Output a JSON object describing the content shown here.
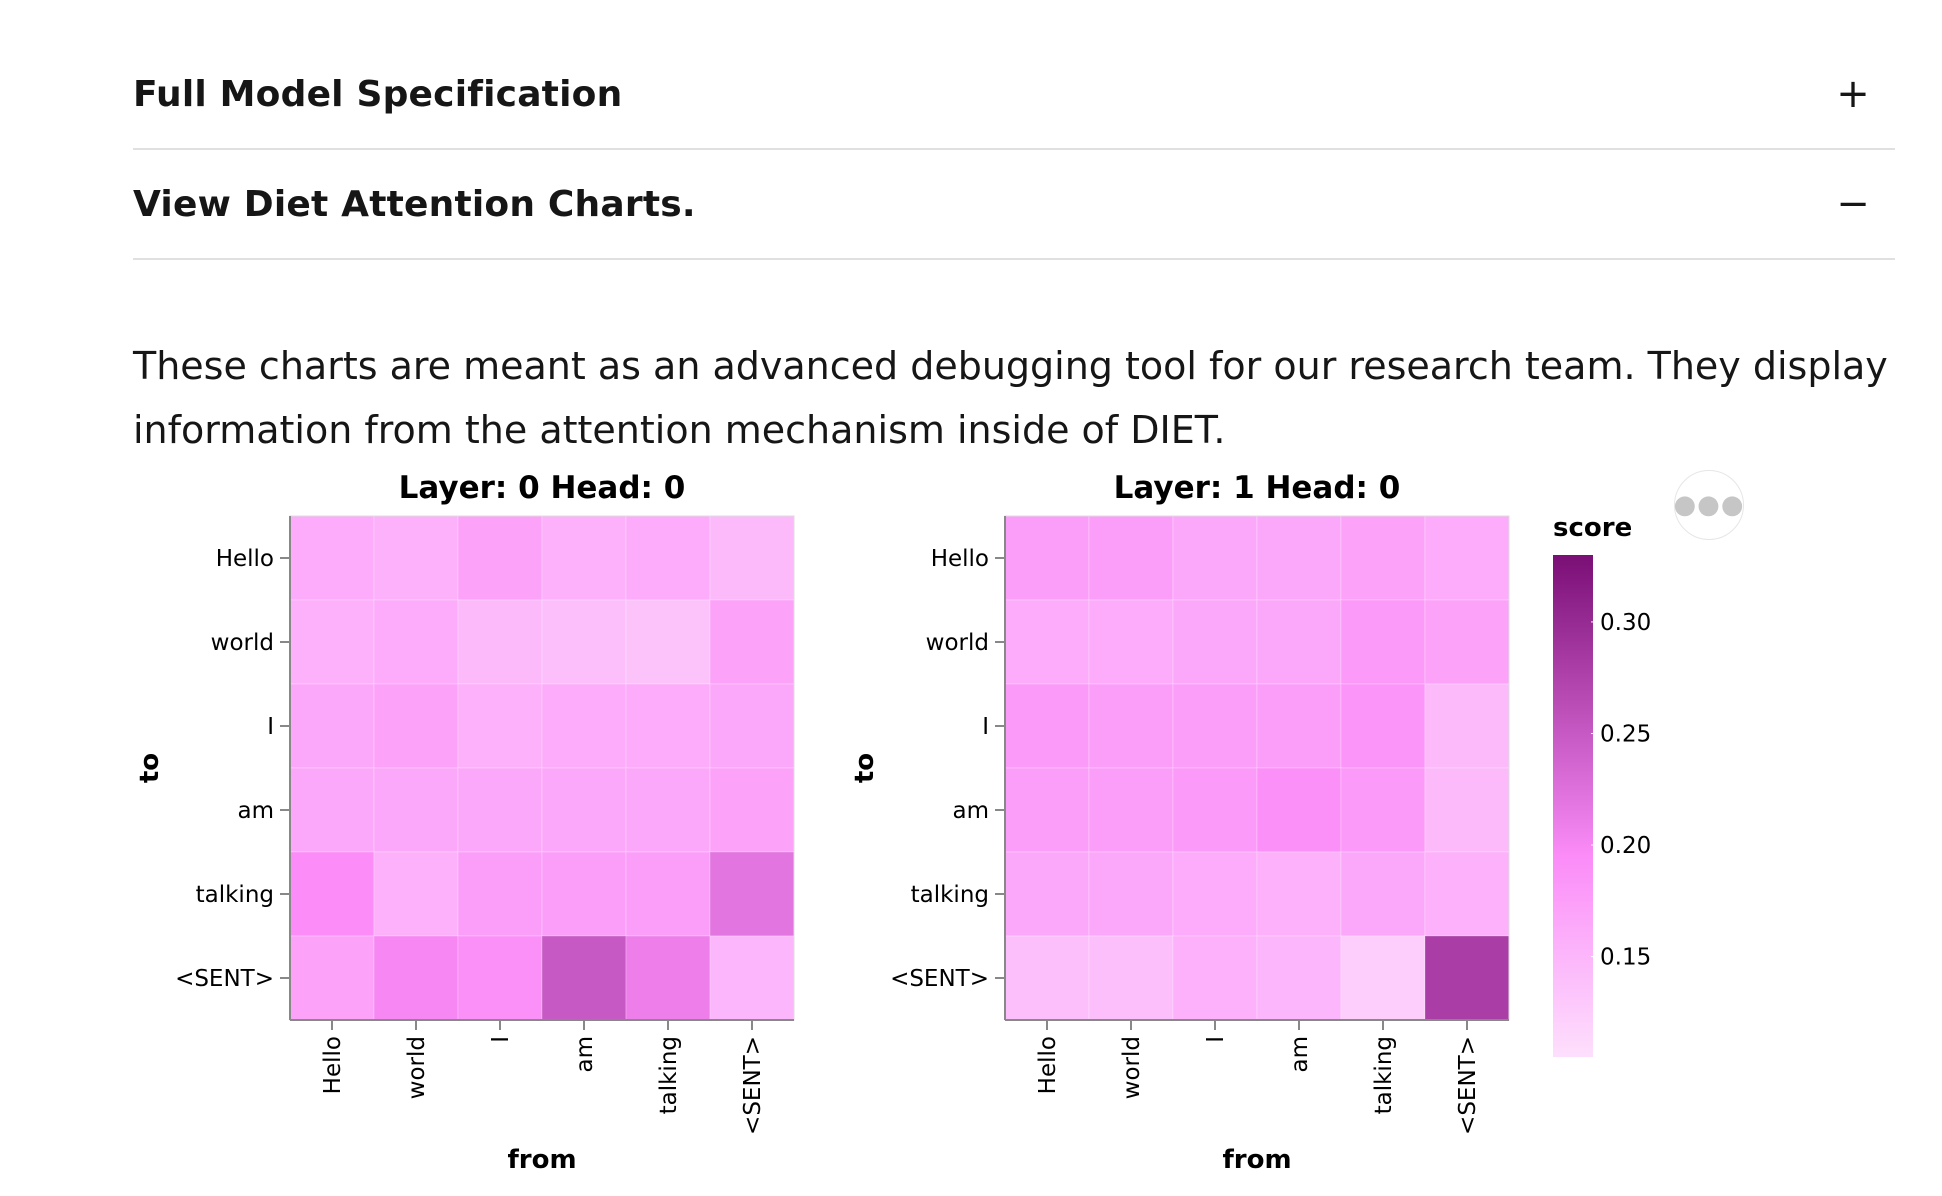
{
  "accordion": {
    "items": [
      {
        "title": "Full Model Specification",
        "icon": "+",
        "icon_name": "plus-icon",
        "expanded": false
      },
      {
        "title": "View Diet Attention Charts.",
        "icon": "−",
        "icon_name": "minus-icon",
        "expanded": true
      }
    ]
  },
  "description": "These charts are meant as an advanced debugging tool for our research team. They display information from the attention mechanism inside of DIET.",
  "actions_icon": "more-horizontal-icon",
  "chart_data": [
    {
      "type": "heatmap",
      "title": "Layer: 0 Head: 0",
      "xlabel": "from",
      "ylabel": "to",
      "x": [
        "Hello",
        "world",
        "I",
        "am",
        "talking",
        "<SENT>"
      ],
      "y": [
        "Hello",
        "world",
        "I",
        "am",
        "talking",
        "<SENT>"
      ],
      "values": [
        [
          0.16,
          0.155,
          0.17,
          0.155,
          0.16,
          0.145
        ],
        [
          0.155,
          0.16,
          0.145,
          0.14,
          0.135,
          0.17
        ],
        [
          0.165,
          0.17,
          0.155,
          0.16,
          0.16,
          0.165
        ],
        [
          0.165,
          0.165,
          0.165,
          0.165,
          0.165,
          0.17
        ],
        [
          0.195,
          0.155,
          0.175,
          0.175,
          0.175,
          0.22
        ],
        [
          0.17,
          0.2,
          0.19,
          0.25,
          0.21,
          0.15
        ]
      ]
    },
    {
      "type": "heatmap",
      "title": "Layer: 1 Head: 0",
      "xlabel": "from",
      "ylabel": "to",
      "x": [
        "Hello",
        "world",
        "I",
        "am",
        "talking",
        "<SENT>"
      ],
      "y": [
        "Hello",
        "world",
        "I",
        "am",
        "talking",
        "<SENT>"
      ],
      "values": [
        [
          0.175,
          0.175,
          0.165,
          0.165,
          0.17,
          0.16
        ],
        [
          0.16,
          0.16,
          0.165,
          0.165,
          0.18,
          0.17
        ],
        [
          0.18,
          0.175,
          0.175,
          0.175,
          0.185,
          0.145
        ],
        [
          0.175,
          0.175,
          0.18,
          0.19,
          0.18,
          0.145
        ],
        [
          0.165,
          0.165,
          0.16,
          0.155,
          0.165,
          0.155
        ],
        [
          0.14,
          0.14,
          0.155,
          0.15,
          0.125,
          0.28
        ]
      ]
    }
  ],
  "legend": {
    "title": "score",
    "ticks": [
      "0.15",
      "0.20",
      "0.25",
      "0.30"
    ],
    "tick_values": [
      0.15,
      0.2,
      0.25,
      0.3
    ],
    "domain": [
      0.105,
      0.33
    ],
    "colors": {
      "low": "#fddffd",
      "mid": "#fb8cf8",
      "high": "#7a0f76"
    }
  }
}
